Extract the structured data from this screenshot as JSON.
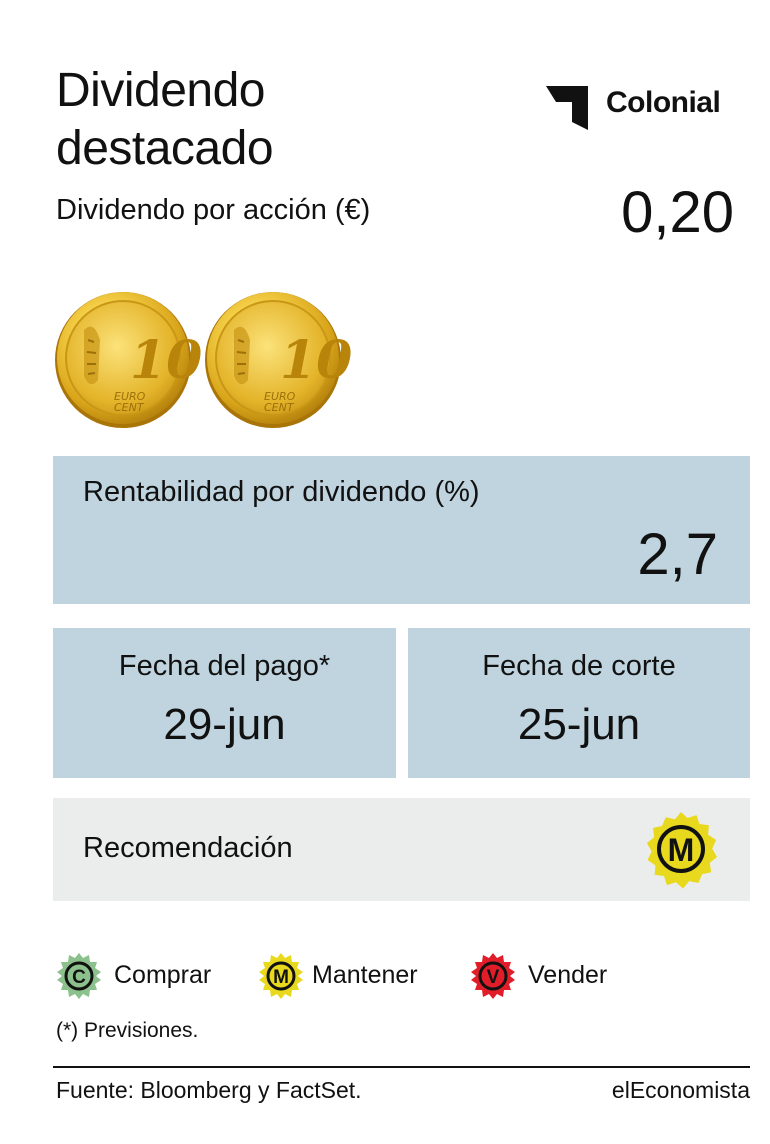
{
  "header": {
    "title_line1": "Dividendo",
    "title_line2": "destacado",
    "subtitle": "Dividendo por acción (€)"
  },
  "company": {
    "name": "Colonial",
    "logo_icon": "colonial-logo-icon"
  },
  "dividend": {
    "value": "0,20",
    "coin_icon": "euro-coin-icon",
    "coin_label": "10",
    "coin_text1": "EURO",
    "coin_text2": "CENT"
  },
  "yield": {
    "label": "Rentabilidad por dividendo (%)",
    "value": "2,7"
  },
  "payment": {
    "label": "Fecha del pago*",
    "value": "29-jun"
  },
  "cutoff": {
    "label": "Fecha de corte",
    "value": "25-jun"
  },
  "recommendation": {
    "label": "Recomendación",
    "badge_letter": "M"
  },
  "legend": [
    {
      "letter": "C",
      "label": "Comprar",
      "color": "#8cc08c"
    },
    {
      "letter": "M",
      "label": "Mantener",
      "color": "#e8d91e"
    },
    {
      "letter": "V",
      "label": "Vender",
      "color": "#e11d2a"
    }
  ],
  "footer": {
    "note": "(*) Previsiones.",
    "source": "Fuente: Bloomberg y FactSet.",
    "brand": "elEconomista"
  },
  "colors": {
    "panel": "#bfd4de",
    "panel_rec": "#ebedec",
    "text": "#111111"
  }
}
